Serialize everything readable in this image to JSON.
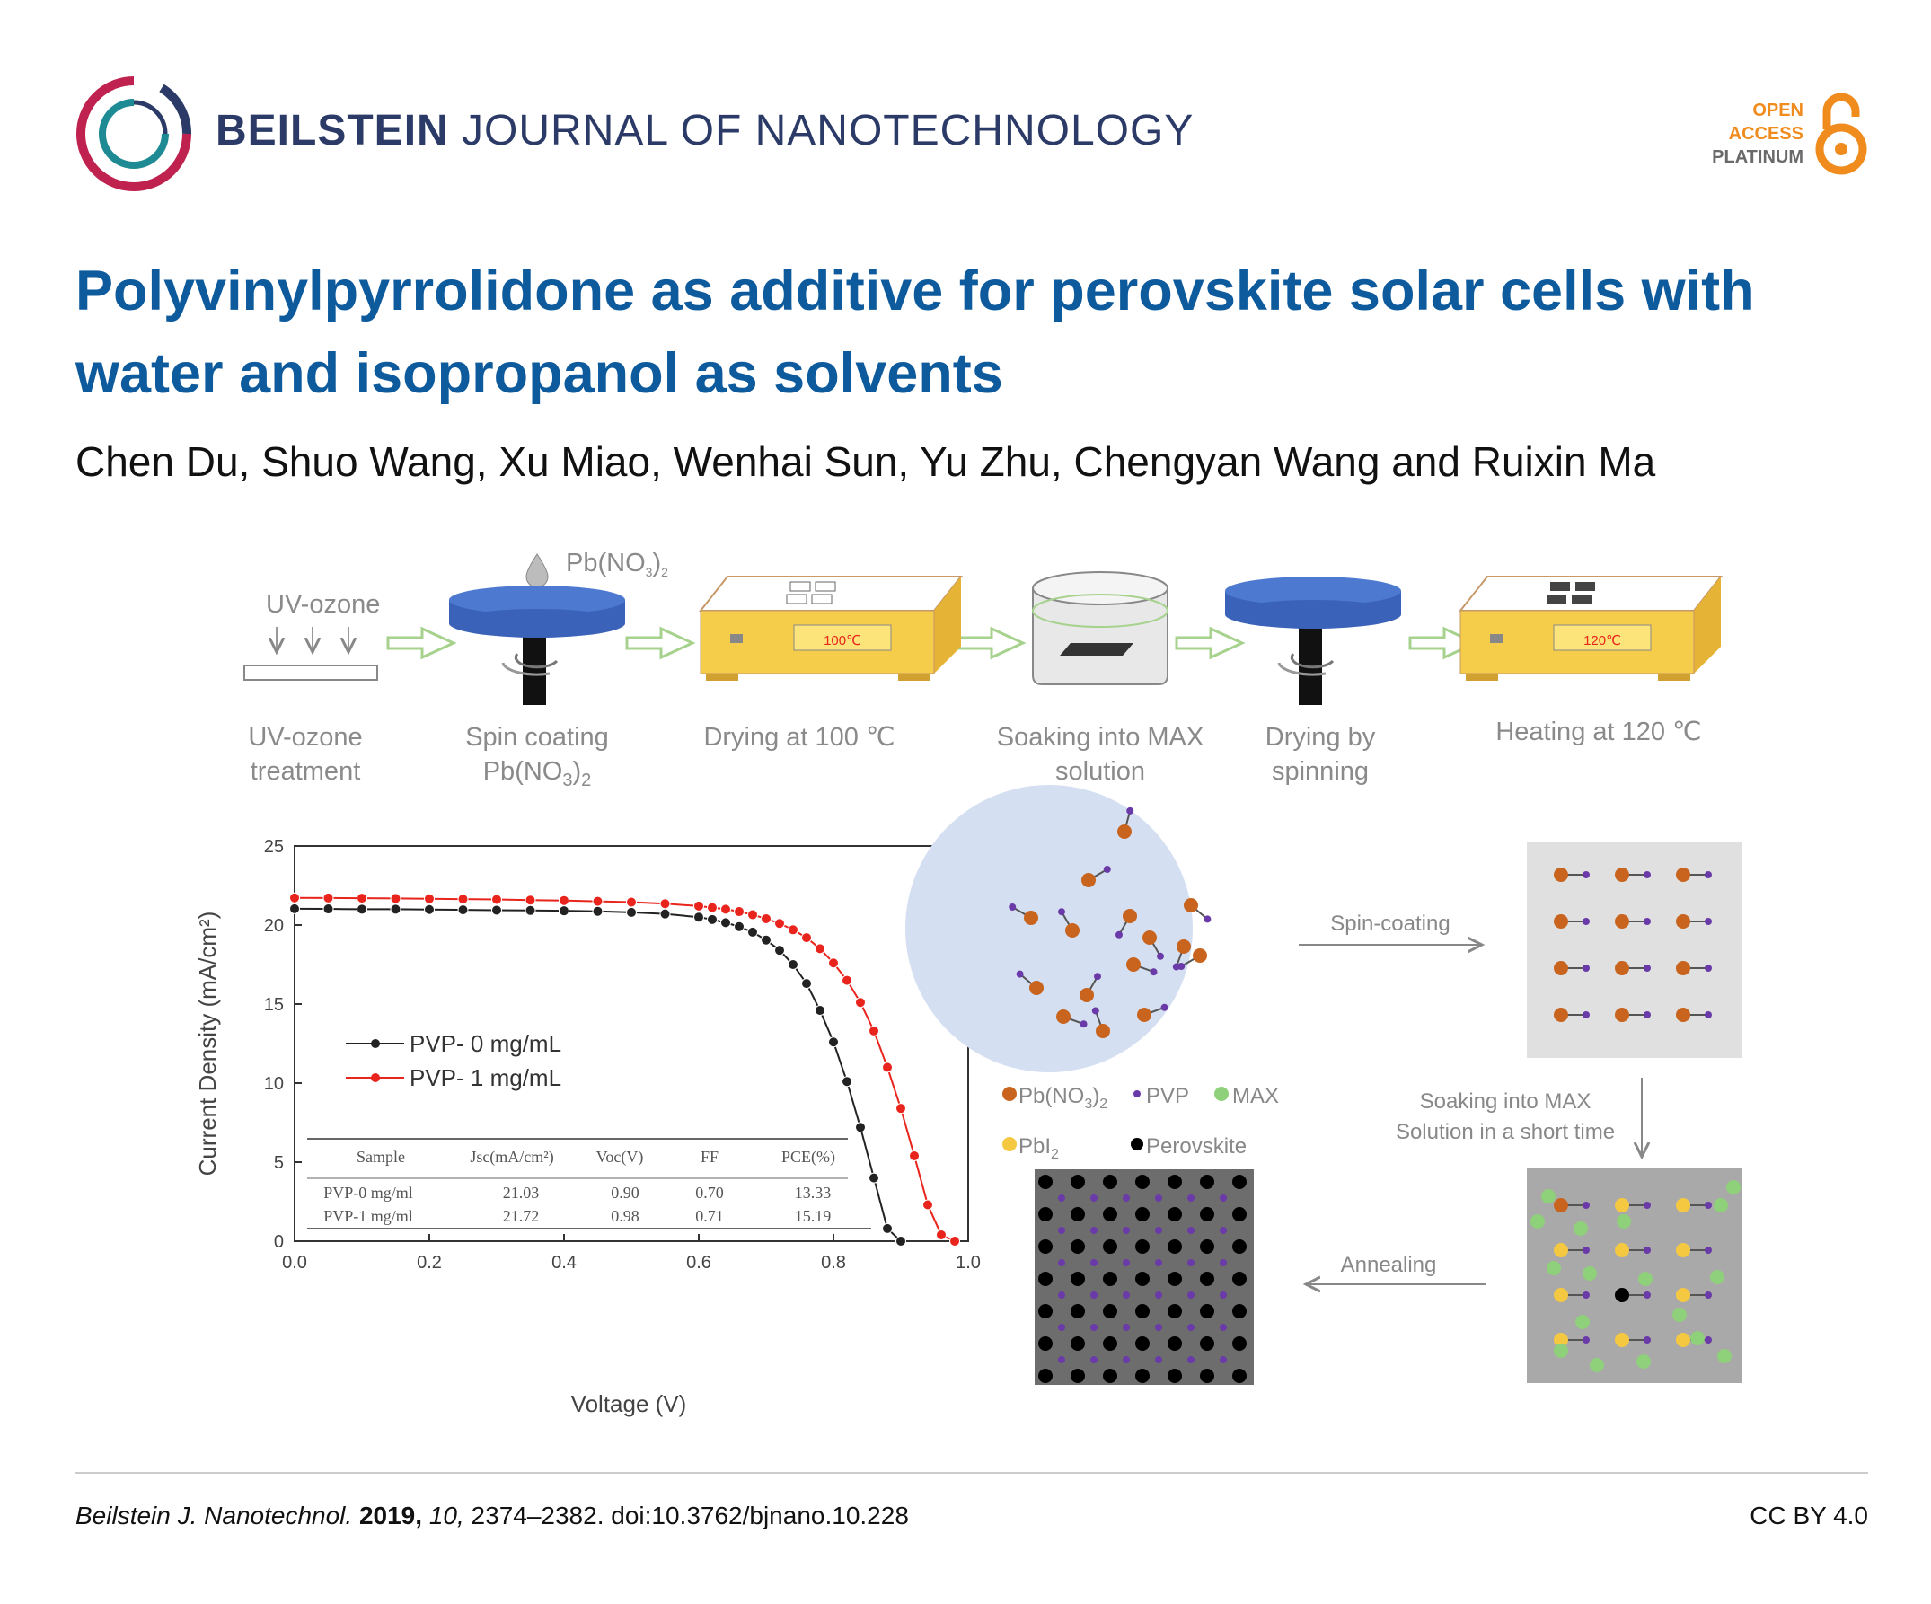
{
  "header": {
    "journal_bold": "BEILSTEIN",
    "journal_rest": "JOURNAL OF NANOTECHNOLOGY",
    "oa_line1": "OPEN",
    "oa_line2": "ACCESS",
    "oa_line3": "PLATINUM"
  },
  "article": {
    "title": "Polyvinylpyrrolidone as additive for perovskite solar cells with water and isopropanol as solvents",
    "authors": "Chen Du, Shuo Wang, Xu Miao, Wenhai Sun, Yu Zhu, Chengyan Wang and Ruixin Ma"
  },
  "process": {
    "uv_label": "UV-ozone",
    "drop_label": "Pb(NO",
    "drop_sub": "3",
    "drop_end": ")",
    "drop_sub2": "2",
    "display1": "100℃",
    "display2": "120℃",
    "steps": [
      {
        "l1": "UV-ozone",
        "l2": "treatment"
      },
      {
        "l1": "Spin coating",
        "l2": "Pb(NO",
        "sub": "3",
        "end": ")",
        "sub2": "2"
      },
      {
        "l1": "Drying at 100 ℃"
      },
      {
        "l1": "Soaking into MAX",
        "l2": "solution"
      },
      {
        "l1": "Drying by",
        "l2": "spinning"
      },
      {
        "l1": "Heating at 120 ℃"
      }
    ]
  },
  "chart_data": {
    "type": "line",
    "xlabel": "Voltage (V)",
    "ylabel": "Current Density (mA/cm²)",
    "xlim": [
      0.0,
      1.0
    ],
    "ylim": [
      0,
      25
    ],
    "xticks": [
      "0.0",
      "0.2",
      "0.4",
      "0.6",
      "0.8",
      "1.0"
    ],
    "yticks": [
      "0",
      "5",
      "10",
      "15",
      "20",
      "25"
    ],
    "series": [
      {
        "name": "PVP- 0 mg/mL",
        "color": "#222222",
        "x": [
          0.0,
          0.05,
          0.1,
          0.15,
          0.2,
          0.25,
          0.3,
          0.35,
          0.4,
          0.45,
          0.5,
          0.55,
          0.6,
          0.62,
          0.64,
          0.66,
          0.68,
          0.7,
          0.72,
          0.74,
          0.76,
          0.78,
          0.8,
          0.82,
          0.84,
          0.86,
          0.88,
          0.9
        ],
        "y": [
          21.03,
          21.02,
          21.0,
          21.0,
          20.98,
          20.96,
          20.94,
          20.92,
          20.9,
          20.87,
          20.8,
          20.7,
          20.5,
          20.35,
          20.15,
          19.9,
          19.55,
          19.05,
          18.4,
          17.5,
          16.3,
          14.6,
          12.6,
          10.1,
          7.2,
          4.0,
          0.8,
          0.0
        ]
      },
      {
        "name": "PVP- 1 mg/mL",
        "color": "#e8241c",
        "x": [
          0.0,
          0.05,
          0.1,
          0.15,
          0.2,
          0.25,
          0.3,
          0.35,
          0.4,
          0.45,
          0.5,
          0.55,
          0.6,
          0.62,
          0.64,
          0.66,
          0.68,
          0.7,
          0.72,
          0.74,
          0.76,
          0.78,
          0.8,
          0.82,
          0.84,
          0.86,
          0.88,
          0.9,
          0.92,
          0.94,
          0.96,
          0.98
        ],
        "y": [
          21.72,
          21.71,
          21.7,
          21.68,
          21.66,
          21.64,
          21.62,
          21.58,
          21.55,
          21.5,
          21.45,
          21.35,
          21.2,
          21.1,
          21.0,
          20.85,
          20.65,
          20.4,
          20.1,
          19.7,
          19.2,
          18.5,
          17.6,
          16.5,
          15.1,
          13.3,
          11.0,
          8.4,
          5.4,
          2.3,
          0.4,
          0.0
        ]
      }
    ],
    "table": {
      "headers": [
        "Sample",
        "Jsc(mA/cm²)",
        "Voc(V)",
        "FF",
        "PCE(%)"
      ],
      "rows": [
        [
          "PVP-0 mg/ml",
          "21.03",
          "0.90",
          "0.70",
          "13.33"
        ],
        [
          "PVP-1 mg/ml",
          "21.72",
          "0.98",
          "0.71",
          "15.19"
        ]
      ]
    }
  },
  "schematic": {
    "legend": {
      "pb_no3": "Pb(NO",
      "pb_no3_sub": "3",
      "pb_no3_end": ")",
      "pb_no3_sub2": "2",
      "pvp": "PVP",
      "max": "MAX",
      "pbi2": "PbI",
      "pbi2_sub": "2",
      "perovskite": "Perovskite"
    },
    "arrow_spin": "Spin-coating",
    "arrow_soak_1": "Soaking into MAX",
    "arrow_soak_2": "Solution in a short time",
    "arrow_anneal": "Annealing",
    "colors": {
      "pb": "#c8641e",
      "pvp": "#6a3aa8",
      "max": "#8fd07a",
      "pbi2": "#f5c842",
      "perovskite": "#000000"
    }
  },
  "footer": {
    "journal_abbrev": "Beilstein J. Nanotechnol.",
    "year": "2019,",
    "volume": "10,",
    "pages_doi": "2374–2382. doi:10.3762/bjnano.10.228",
    "license": "CC BY 4.0"
  }
}
